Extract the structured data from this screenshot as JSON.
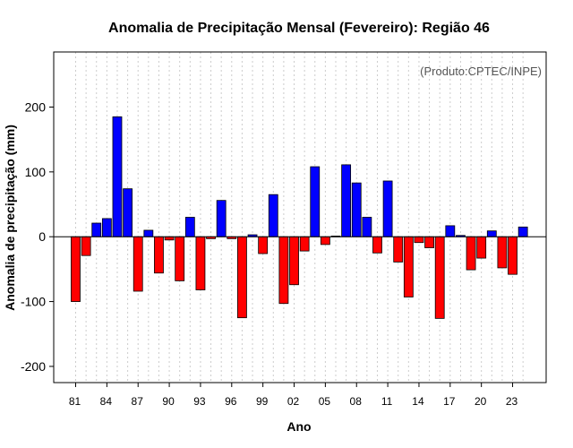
{
  "chart_data": {
    "type": "bar",
    "title": "Anomalia de Precipitação Mensal (Fevereiro): Região 46",
    "xlabel": "Ano",
    "ylabel": "Anomalia de precipitação (mm)",
    "credit": "(Produto:CPTEC/INPE)",
    "ylim": [
      -225,
      285
    ],
    "yticks": [
      -200,
      -100,
      0,
      100,
      200
    ],
    "grid": "vertical dotted",
    "years": [
      1981,
      1982,
      1983,
      1984,
      1985,
      1986,
      1987,
      1988,
      1989,
      1990,
      1991,
      1992,
      1993,
      1994,
      1995,
      1996,
      1997,
      1998,
      1999,
      2000,
      2001,
      2002,
      2003,
      2004,
      2005,
      2006,
      2007,
      2008,
      2009,
      2010,
      2011,
      2012,
      2013,
      2014,
      2015,
      2016,
      2017,
      2018,
      2019,
      2020,
      2021,
      2022,
      2023,
      2024
    ],
    "values": [
      -100,
      -29,
      21,
      28,
      185,
      74,
      -84,
      10,
      -56,
      -5,
      -68,
      30,
      -82,
      -3,
      56,
      -3,
      -125,
      3,
      -26,
      65,
      -103,
      -74,
      -22,
      108,
      -12,
      1,
      111,
      83,
      30,
      -25,
      86,
      -39,
      -93,
      -9,
      -17,
      -126,
      17,
      2,
      -51,
      -33,
      9,
      -48,
      -58,
      15
    ],
    "xtick_labels": [
      "81",
      "84",
      "87",
      "90",
      "93",
      "96",
      "99",
      "02",
      "05",
      "08",
      "11",
      "14",
      "17",
      "20",
      "23"
    ],
    "colors": {
      "positive": "#0000ff",
      "negative": "#ff0000",
      "grid": "#cccccc",
      "zero_line": "#000000",
      "credit": "#555555"
    }
  }
}
